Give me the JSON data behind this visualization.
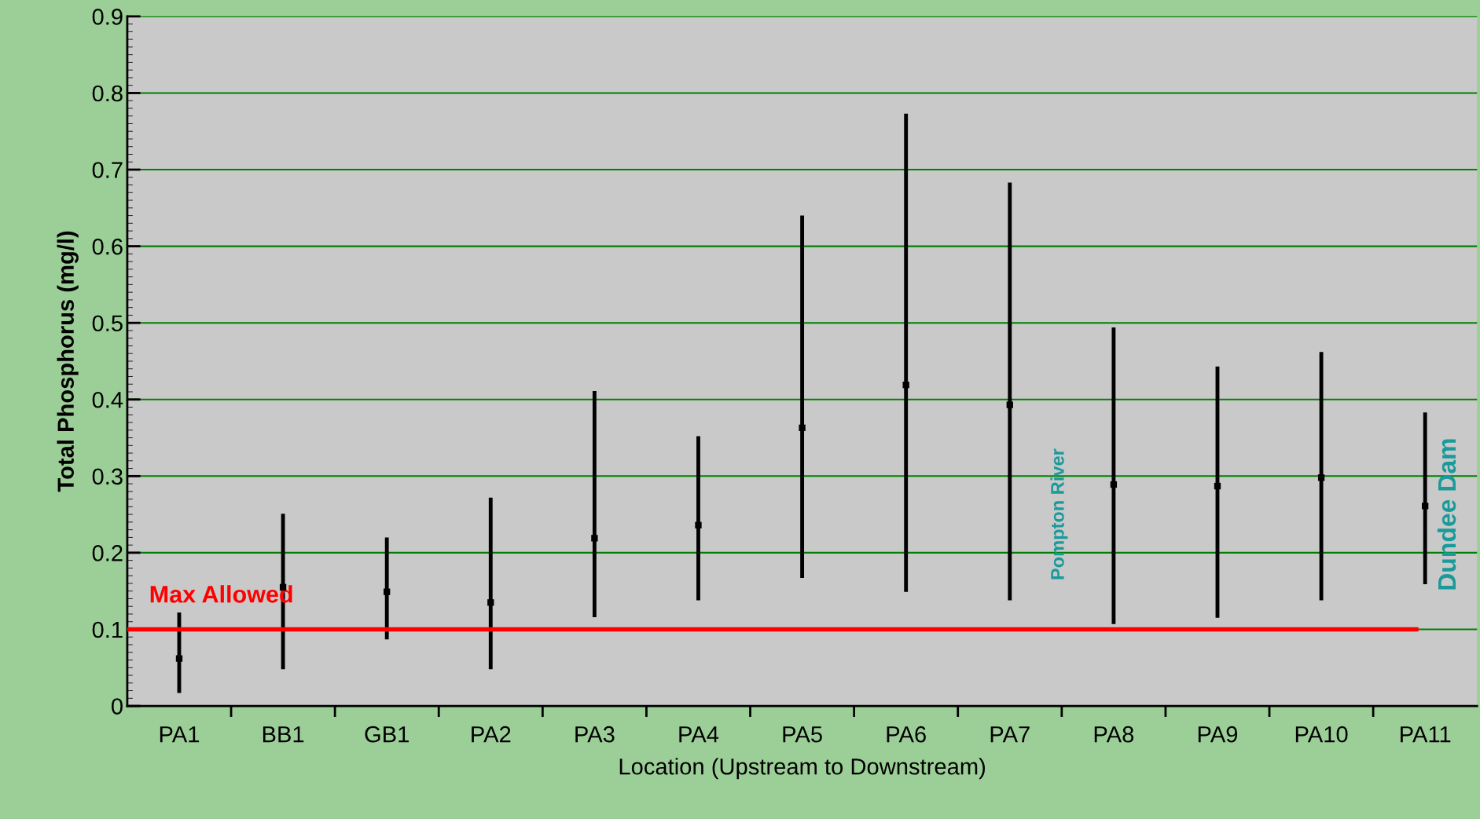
{
  "chart_data": {
    "type": "scatter",
    "xlabel": "Location (Upstream to Downstream)",
    "ylabel": "Total Phosphorus (mg/l)",
    "categories": [
      "PA1",
      "BB1",
      "GB1",
      "PA2",
      "PA3",
      "PA4",
      "PA5",
      "PA6",
      "PA7",
      "PA8",
      "PA9",
      "PA10",
      "PA11"
    ],
    "series": [
      {
        "color": "#000000",
        "values": [
          0.062,
          0.155,
          0.149,
          0.135,
          0.219,
          0.236,
          0.363,
          0.419,
          0.393,
          0.289,
          0.287,
          0.298,
          0.261
        ],
        "errors": [
          [
            0.017,
            0.122
          ],
          [
            0.048,
            0.251
          ],
          [
            0.087,
            0.22
          ],
          [
            0.048,
            0.272
          ],
          [
            0.116,
            0.411
          ],
          [
            0.138,
            0.352
          ],
          [
            0.167,
            0.64
          ],
          [
            0.149,
            0.773
          ],
          [
            0.138,
            0.683
          ],
          [
            0.107,
            0.494
          ],
          [
            0.115,
            0.443
          ],
          [
            0.138,
            0.462
          ],
          [
            0.159,
            0.383
          ]
        ]
      }
    ],
    "ylim": [
      0,
      0.9
    ],
    "yticks": [
      0,
      0.1,
      0.2,
      0.3,
      0.4,
      0.5,
      0.6,
      0.7,
      0.8,
      0.9
    ],
    "grid": "y",
    "ref_lines": [
      {
        "axis": "y",
        "value": 0.1,
        "label": "Max Allowed",
        "color": "#ff0000",
        "line_style": "solid"
      }
    ],
    "annotations": [
      {
        "text": "Pompton River",
        "x": "PA8",
        "y": 0.25
      },
      {
        "text": "Dundee Dam",
        "x": "PA11",
        "y": 0.25
      }
    ]
  }
}
